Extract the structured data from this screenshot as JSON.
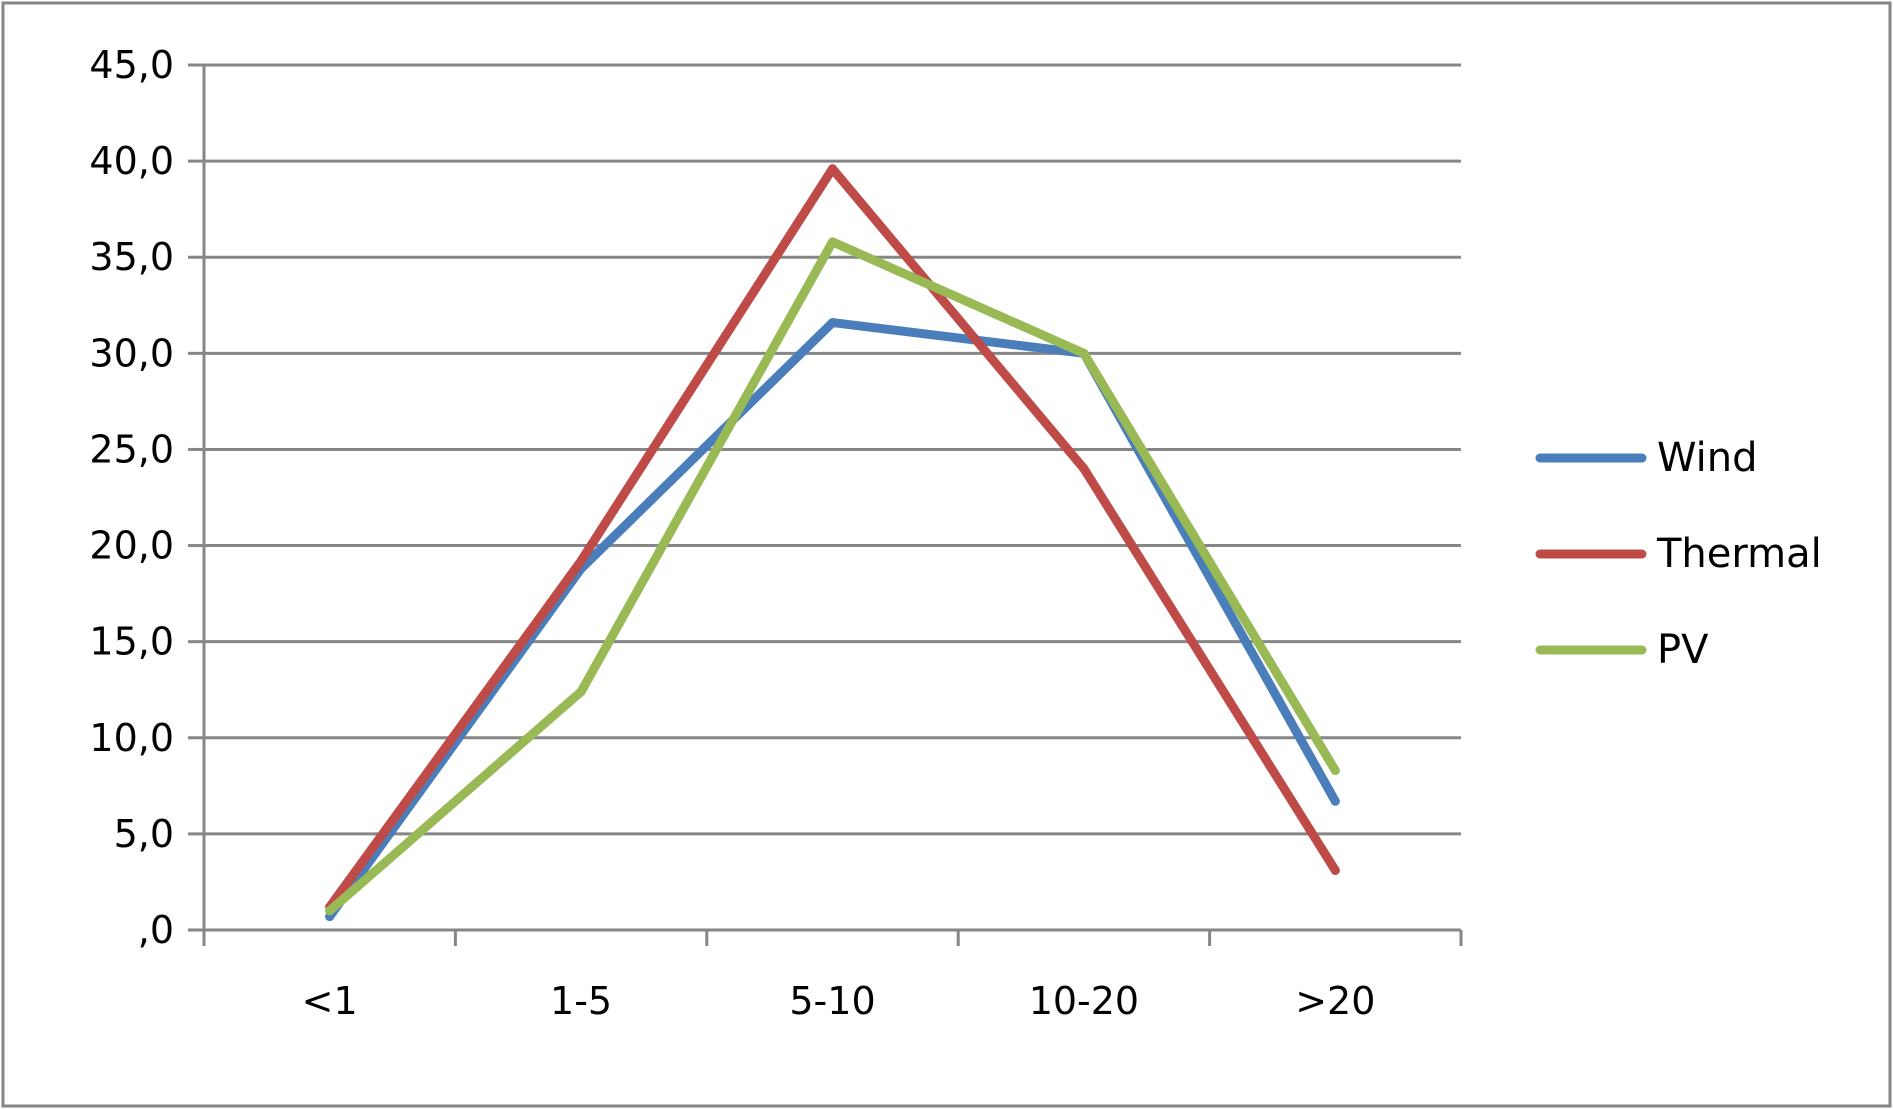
{
  "chart_data": {
    "type": "line",
    "title": "",
    "xlabel": "",
    "ylabel": "",
    "categories": [
      "<1",
      "1-5",
      "5-10",
      "10-20",
      ">20"
    ],
    "ylim": [
      0,
      45
    ],
    "ytick_values": [
      0,
      5,
      10,
      15,
      20,
      25,
      30,
      35,
      40,
      45
    ],
    "ytick_labels": [
      ",0",
      "5,0",
      "10,0",
      "15,0",
      "20,0",
      "25,0",
      "30,0",
      "35,0",
      "40,0",
      "45,0"
    ],
    "grid": true,
    "legend_position": "right",
    "series": [
      {
        "name": "Wind",
        "color": "#4a7ebb",
        "values": [
          0.7,
          18.8,
          31.6,
          30.0,
          6.7
        ]
      },
      {
        "name": "Thermal",
        "color": "#be4b48",
        "values": [
          1.2,
          19.2,
          39.6,
          24.0,
          3.1
        ]
      },
      {
        "name": "PV",
        "color": "#98b954",
        "values": [
          1.0,
          12.4,
          35.8,
          30.0,
          8.3
        ]
      }
    ]
  }
}
